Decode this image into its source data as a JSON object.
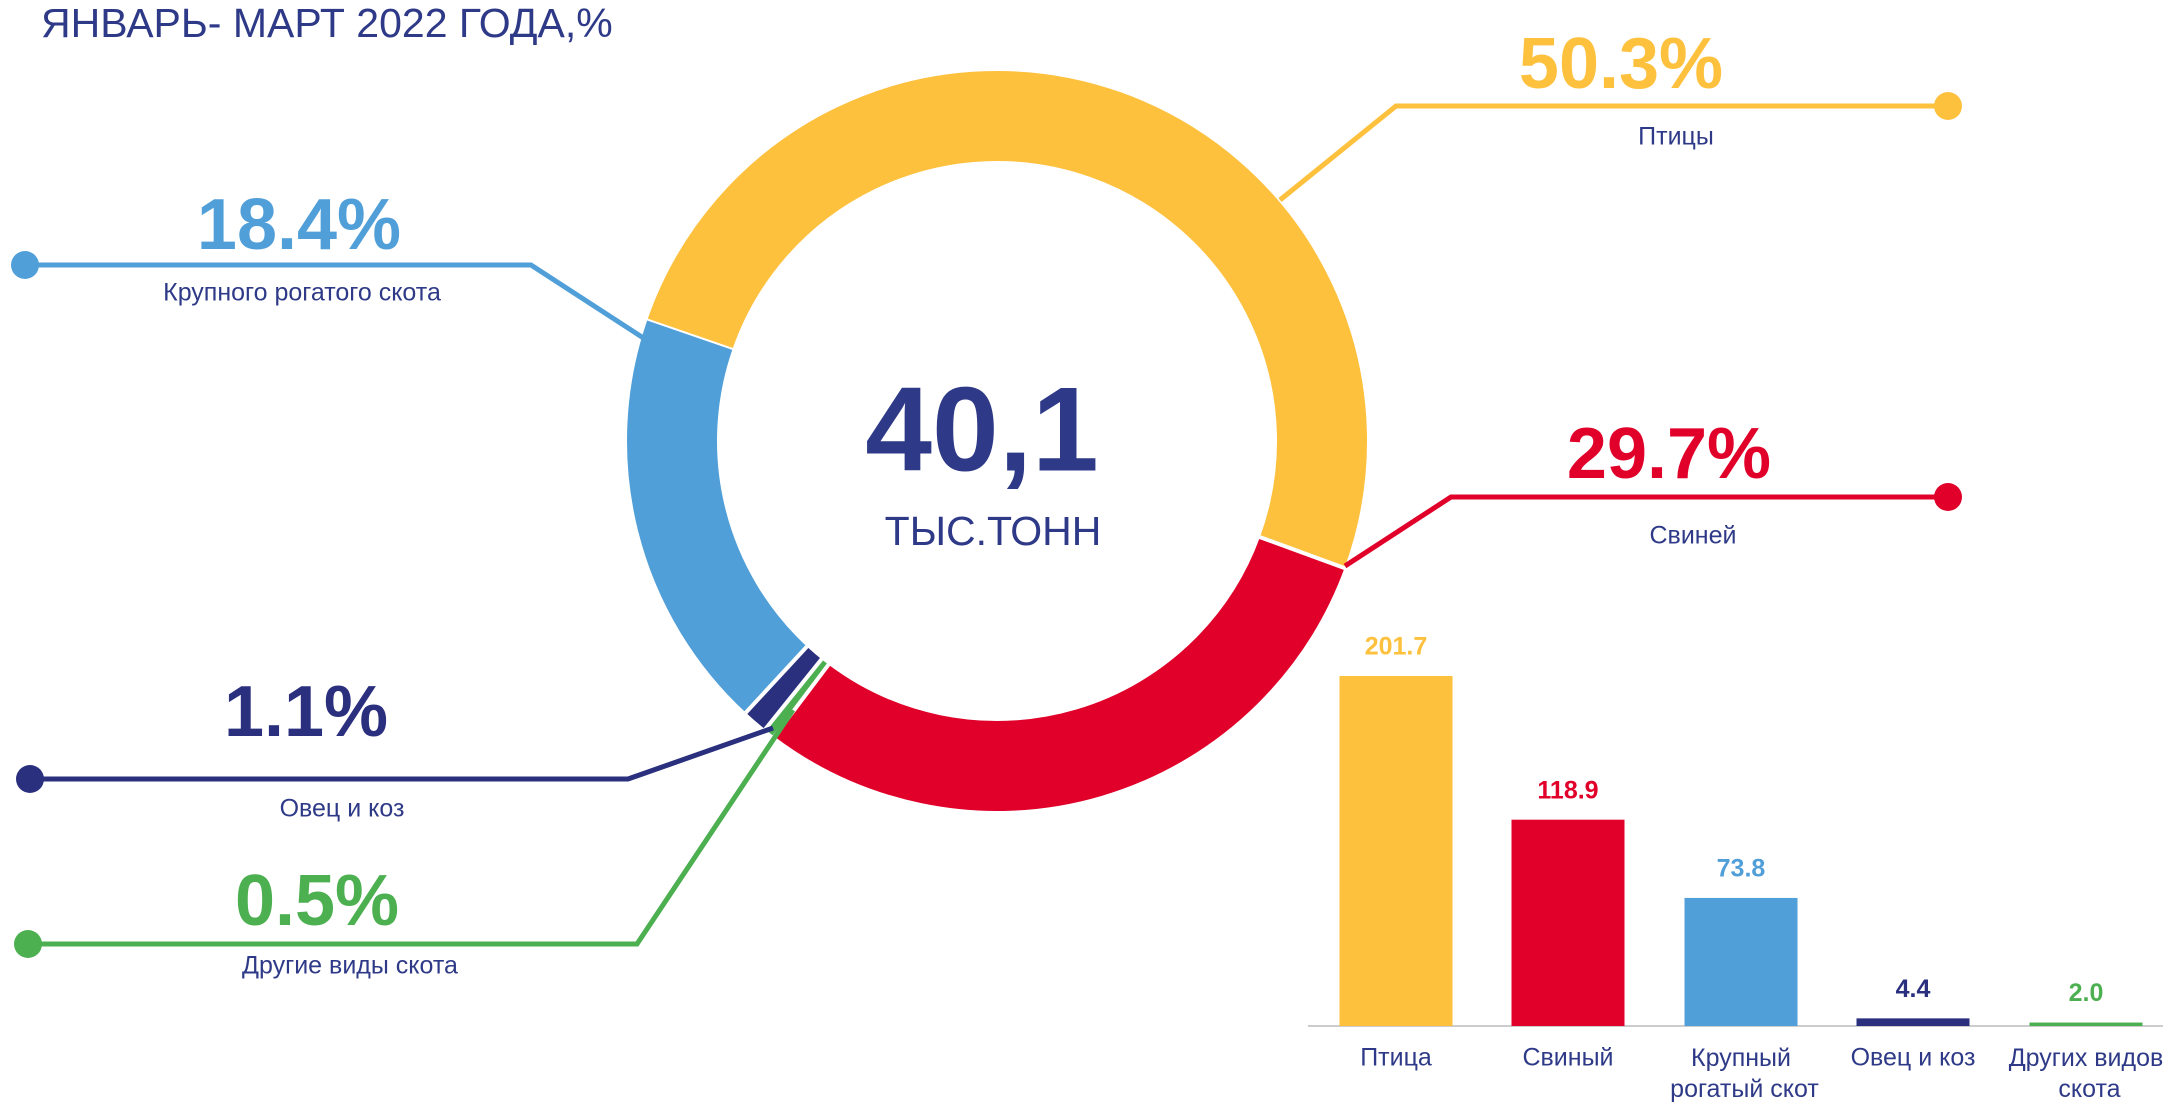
{
  "chart_data": [
    {
      "type": "pie",
      "title": "ЯНВАРЬ- МАРТ 2022 ГОДА,%",
      "center_value": "40,1",
      "center_label": "ТЫС.ТОНН",
      "categories": [
        "Птицы",
        "Свиней",
        "Другие виды скота",
        "Овец и коз",
        "Крупного рогатого скота"
      ],
      "values": [
        50.3,
        29.7,
        0.5,
        1.1,
        18.4
      ],
      "value_labels": [
        "50.3%",
        "29.7%",
        "0.5%",
        "1.1%",
        "18.4%"
      ],
      "colors": [
        "#fdc13e",
        "#e0002a",
        "#4caf50",
        "#2a2f7e",
        "#519fd8"
      ]
    },
    {
      "type": "bar",
      "categories": [
        "Птица",
        "Свиный",
        "Крупный рогатый скот",
        "Овец и коз",
        "Других видов скота"
      ],
      "values": [
        201.7,
        118.9,
        73.8,
        4.4,
        2.0
      ],
      "value_labels": [
        "201.7",
        "118.9",
        "73.8",
        "4.4",
        "2.0"
      ],
      "colors": [
        "#fdc13e",
        "#e0002a",
        "#519fd8",
        "#2a2f7e",
        "#4caf50"
      ]
    }
  ]
}
